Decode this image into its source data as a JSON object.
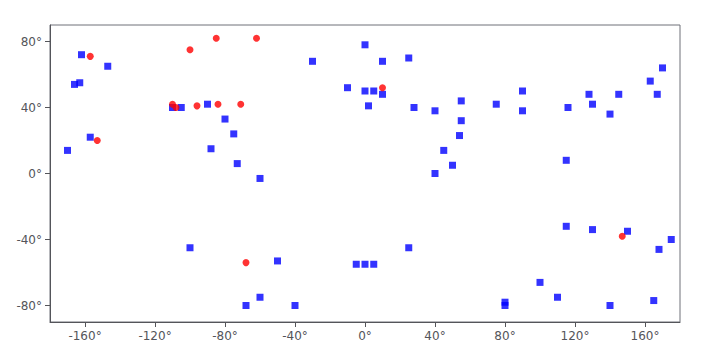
{
  "chart_data": {
    "type": "scatter",
    "series": [
      {
        "color": "blue",
        "marker": "square",
        "x": [
          -162,
          -147,
          -166,
          -163,
          -157,
          -170,
          -105,
          -110,
          -90,
          -80,
          -75,
          -88,
          -73,
          -60,
          -100,
          -60,
          -68,
          -40,
          -30,
          0,
          10,
          25,
          -10,
          0,
          5,
          10,
          2,
          28,
          40,
          55,
          50,
          40,
          45,
          54,
          55,
          75,
          90,
          90,
          116,
          130,
          140,
          128,
          145,
          163,
          170,
          167,
          168,
          175,
          115,
          115,
          130,
          150,
          165,
          100,
          80,
          25,
          5,
          -5,
          -50,
          0,
          80,
          110,
          140
        ],
        "values": [
          72,
          65,
          54,
          55,
          22,
          14,
          40,
          40,
          42,
          33,
          24,
          15,
          6,
          -3,
          -45,
          -75,
          -80,
          -80,
          68,
          78,
          68,
          70,
          52,
          50,
          50,
          48,
          41,
          40,
          38,
          32,
          5,
          0,
          14,
          23,
          44,
          42,
          38,
          50,
          40,
          42,
          36,
          48,
          48,
          56,
          64,
          48,
          -46,
          -40,
          8,
          -32,
          -34,
          -35,
          -77,
          -66,
          -78,
          -45,
          -55,
          -55,
          -53,
          -55,
          -80,
          -75,
          -80
        ]
      },
      {
        "color": "red",
        "marker": "circle",
        "x": [
          -157,
          -85,
          -62,
          -100,
          -110,
          -108,
          -96,
          -84,
          -71,
          -153,
          10,
          -68,
          147
        ],
        "values": [
          71,
          82,
          82,
          75,
          42,
          40,
          41,
          42,
          42,
          20,
          52,
          -54,
          -38
        ]
      }
    ],
    "xlim": [
      -180,
      180
    ],
    "ylim": [
      -90,
      90
    ],
    "xticks": [
      {
        "value": -160,
        "label": "-160°"
      },
      {
        "value": -120,
        "label": "-120°"
      },
      {
        "value": -80,
        "label": "-80°"
      },
      {
        "value": -40,
        "label": "-40°"
      },
      {
        "value": 0,
        "label": "0°"
      },
      {
        "value": 40,
        "label": "40°"
      },
      {
        "value": 80,
        "label": "80°"
      },
      {
        "value": 120,
        "label": "120°"
      },
      {
        "value": 160,
        "label": "160°"
      }
    ],
    "yticks": [
      {
        "value": -80,
        "label": "-80°"
      },
      {
        "value": -40,
        "label": "-40°"
      },
      {
        "value": 0,
        "label": "0°"
      },
      {
        "value": 40,
        "label": "40°"
      },
      {
        "value": 80,
        "label": "80°"
      }
    ],
    "grid": false
  }
}
